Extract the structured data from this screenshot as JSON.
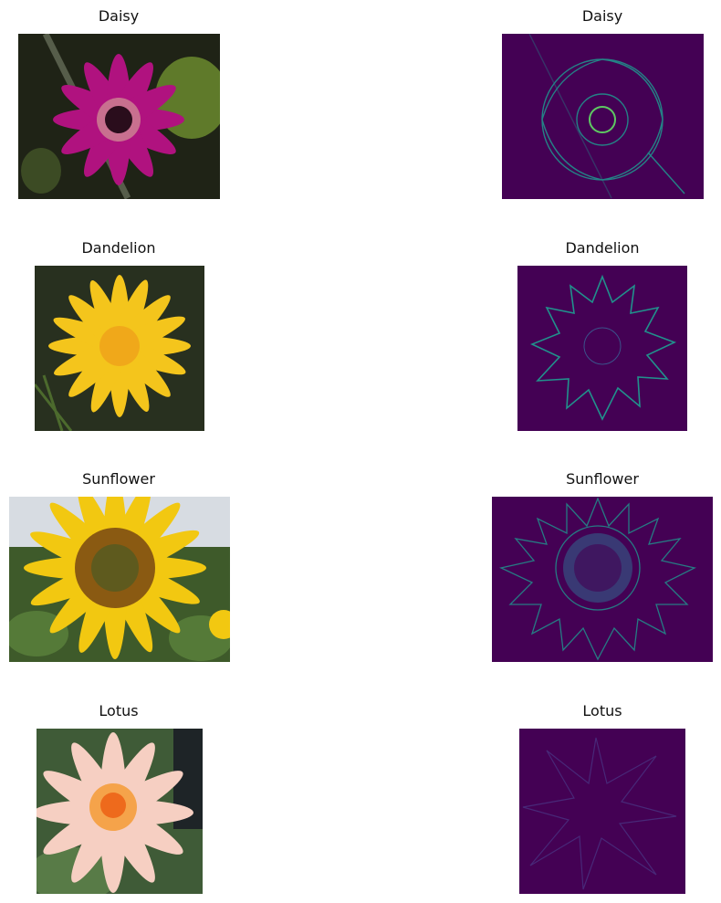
{
  "rows": [
    {
      "left_title": "Daisy",
      "right_title": "Daisy"
    },
    {
      "left_title": "Dandelion",
      "right_title": "Dandelion"
    },
    {
      "left_title": "Sunflower",
      "right_title": "Sunflower"
    },
    {
      "left_title": "Lotus",
      "right_title": "Lotus"
    }
  ],
  "colors": {
    "heatmap_bg": "#440154",
    "heatmap_edge": "#21918c",
    "heatmap_hot": "#5ec962",
    "daisy_petal": "#b0127f",
    "dandelion_petal": "#f4c51c",
    "sunflower_petal": "#f2c811",
    "lotus_petal": "#f6cfc2"
  }
}
